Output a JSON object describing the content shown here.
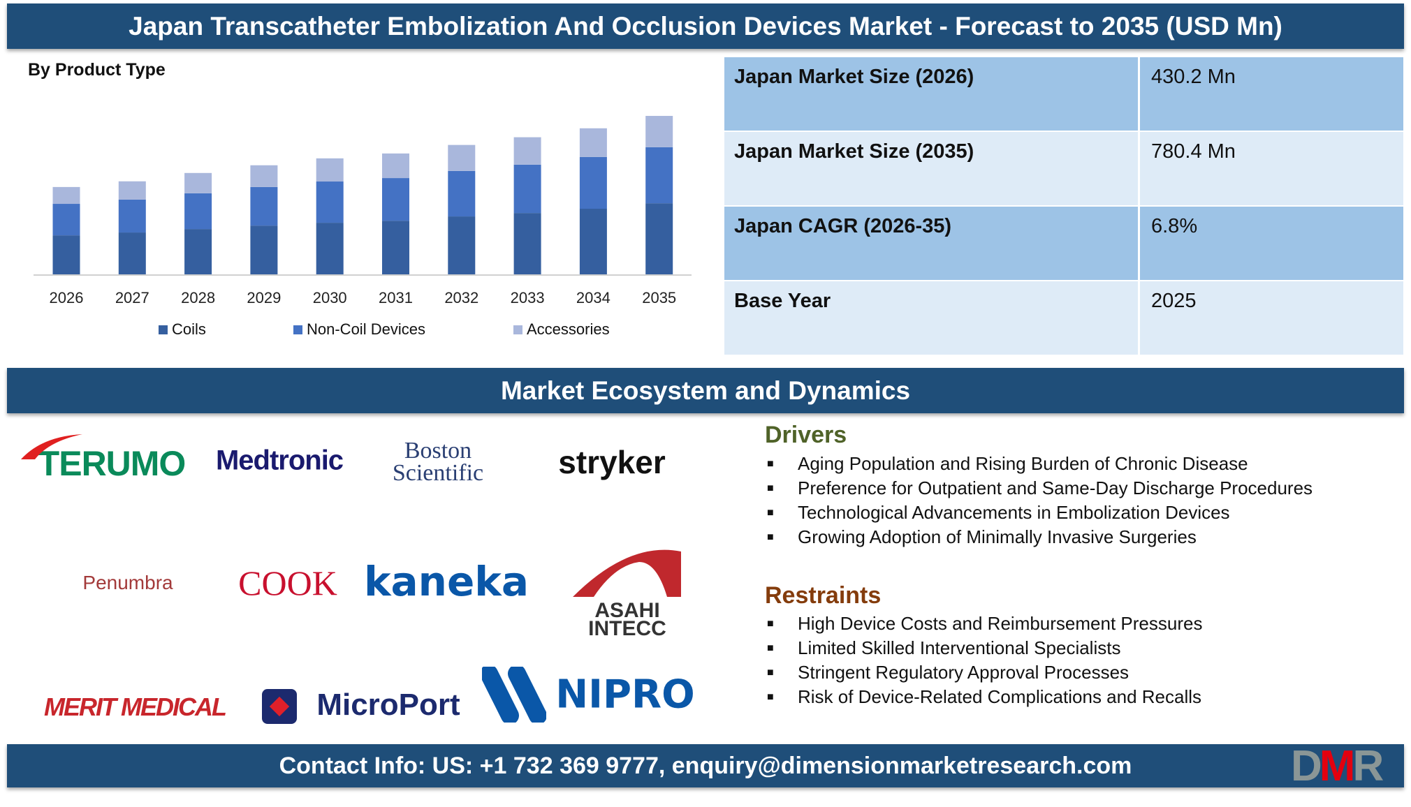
{
  "header": {
    "title": "Japan Transcatheter Embolization And Occlusion Devices Market - Forecast to 2035 (USD Mn)"
  },
  "chart_data": {
    "type": "bar",
    "stacked": true,
    "title": "By Product Type",
    "xlabel": "",
    "ylabel": "",
    "grid": false,
    "legend": "bottom",
    "categories": [
      "2026",
      "2027",
      "2028",
      "2029",
      "2030",
      "2031",
      "2032",
      "2033",
      "2034",
      "2035"
    ],
    "series": [
      {
        "name": "Coils",
        "color": "#355f9f",
        "values": [
          192,
          206,
          223,
          240,
          254,
          264,
          285,
          302,
          323,
          350
        ]
      },
      {
        "name": "Non-Coil Devices",
        "color": "#4472c4",
        "values": [
          155,
          162,
          176,
          190,
          203,
          210,
          224,
          238,
          255,
          276
        ]
      },
      {
        "name": "Accessories",
        "color": "#a9b7dc",
        "values": [
          83,
          90,
          100,
          107,
          114,
          121,
          128,
          135,
          141,
          154
        ]
      }
    ]
  },
  "stats": [
    {
      "label": "Japan Market Size (2026)",
      "value": "430.2 Mn"
    },
    {
      "label": "Japan Market Size (2035)",
      "value": "780.4 Mn"
    },
    {
      "label": "Japan CAGR (2026-35)",
      "value": "6.8%"
    },
    {
      "label": "Base Year",
      "value": "2025"
    }
  ],
  "ecosystem": {
    "title": "Market Ecosystem and Dynamics"
  },
  "logos": [
    "TERUMO",
    "Medtronic",
    "Boston Scientific",
    "stryker",
    "Penumbra",
    "COOK",
    "kaneka",
    "ASAHI INTECC",
    "MERIT MEDICAL",
    "MicroPort",
    "NIPRO"
  ],
  "drivers": {
    "title": "Drivers",
    "items": [
      "Aging Population and Rising Burden of Chronic Disease",
      "Preference for Outpatient and Same-Day Discharge Procedures",
      "Technological Advancements in Embolization Devices",
      "Growing Adoption of Minimally Invasive Surgeries"
    ]
  },
  "restraints": {
    "title": "Restraints",
    "items": [
      "High Device Costs and Reimbursement Pressures",
      "Limited Skilled Interventional Specialists",
      "Stringent Regulatory Approval Processes",
      "Risk of Device-Related Complications and Recalls"
    ]
  },
  "footer": {
    "contact": "Contact Info: US: +1 732 369 9777, enquiry@dimensionmarketresearch.com",
    "brand": "DMR"
  }
}
